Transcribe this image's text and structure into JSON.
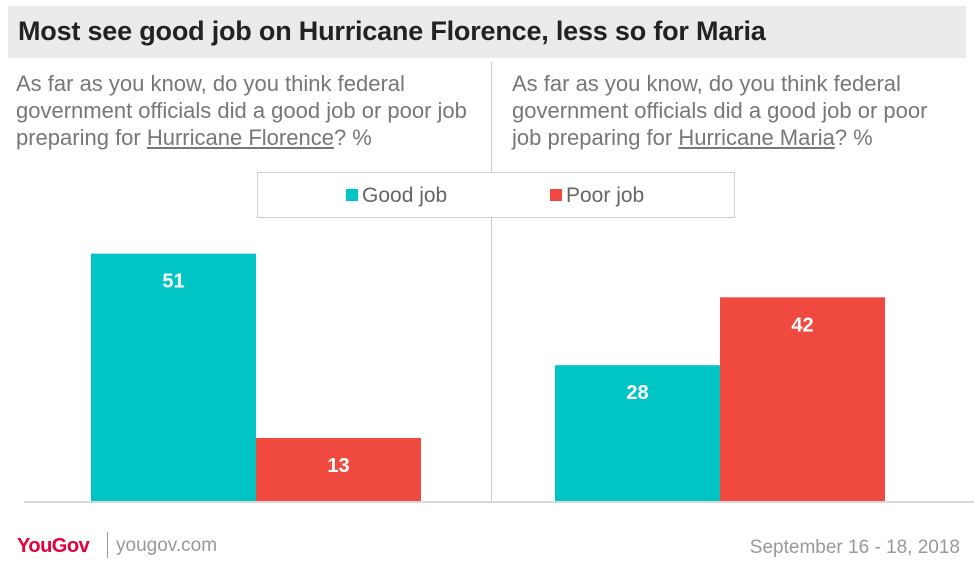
{
  "title": "Most see good job on Hurricane Florence, less so for Maria",
  "questions": {
    "left": {
      "prefix": "As far as you know, do you think federal government officials did a good job or poor job preparing for ",
      "highlight": "Hurricane Florence",
      "suffix": "? %"
    },
    "right": {
      "prefix": "As far as you know, do you think federal government officials did a good job or poor job preparing for ",
      "highlight": "Hurricane Maria",
      "suffix": "? %"
    }
  },
  "legend": {
    "good": "Good job",
    "poor": "Poor job"
  },
  "colors": {
    "good": "#00c5c4",
    "poor": "#f04a40"
  },
  "footer": {
    "brand": "YouGov",
    "site": "yougov.com",
    "date": "September 16 - 18, 2018"
  },
  "chart_data": [
    {
      "type": "bar",
      "categories": [
        "Good job",
        "Poor job"
      ],
      "series": [
        {
          "values": [
            51,
            13
          ]
        }
      ],
      "ylim": [
        0,
        55
      ]
    },
    {
      "type": "bar",
      "categories": [
        "Good job",
        "Poor job"
      ],
      "series": [
        {
          "values": [
            28,
            42
          ]
        }
      ],
      "ylim": [
        0,
        55
      ]
    }
  ]
}
